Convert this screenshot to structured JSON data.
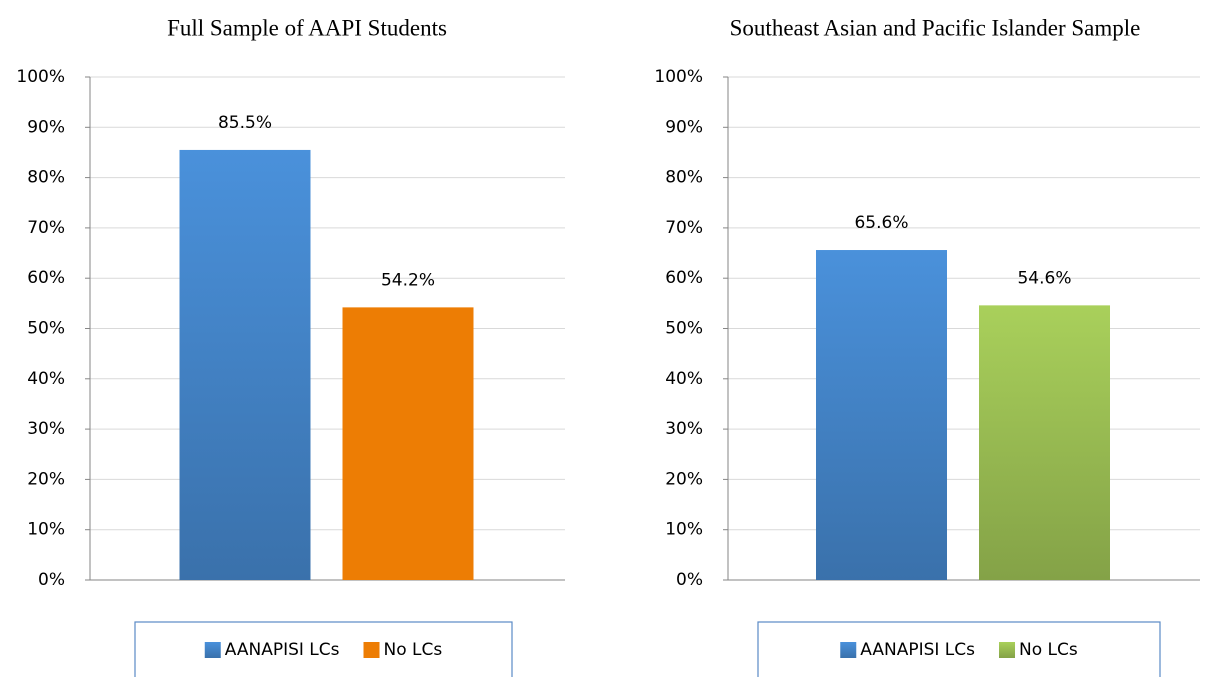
{
  "chart_data": [
    {
      "type": "bar",
      "title": "Full Sample of AAPI Students",
      "categories": [
        null
      ],
      "series": [
        {
          "name": "AANAPISI LCs",
          "color": "#4a91db",
          "gradient": true,
          "values": [
            85.5
          ],
          "value_labels": [
            "85.5%"
          ]
        },
        {
          "name": "No LCs",
          "color": "#ed7d04",
          "gradient": false,
          "values": [
            54.2
          ],
          "value_labels": [
            "54.2%"
          ]
        }
      ],
      "ylim": [
        0,
        100
      ],
      "yticks": [
        {
          "value": 0,
          "label": "0%"
        },
        {
          "value": 10,
          "label": "10%"
        },
        {
          "value": 20,
          "label": "20%"
        },
        {
          "value": 30,
          "label": "30%"
        },
        {
          "value": 40,
          "label": "40%"
        },
        {
          "value": 50,
          "label": "50%"
        },
        {
          "value": 60,
          "label": "60%"
        },
        {
          "value": 70,
          "label": "70%"
        },
        {
          "value": 80,
          "label": "80%"
        },
        {
          "value": 90,
          "label": "90%"
        },
        {
          "value": 100,
          "label": "100%"
        }
      ],
      "grid": true,
      "legend": "bottom"
    },
    {
      "type": "bar",
      "title": "Southeast Asian and Pacific Islander Sample",
      "categories": [
        null
      ],
      "series": [
        {
          "name": "AANAPISI LCs",
          "color": "#4a91db",
          "gradient": true,
          "values": [
            65.6
          ],
          "value_labels": [
            "65.6%"
          ]
        },
        {
          "name": "No LCs",
          "color": "#a9d05b",
          "gradient": true,
          "values": [
            54.6
          ],
          "value_labels": [
            "54.6%"
          ]
        }
      ],
      "ylim": [
        0,
        100
      ],
      "yticks": [
        {
          "value": 0,
          "label": "0%"
        },
        {
          "value": 10,
          "label": "10%"
        },
        {
          "value": 20,
          "label": "20%"
        },
        {
          "value": 30,
          "label": "30%"
        },
        {
          "value": 40,
          "label": "40%"
        },
        {
          "value": 50,
          "label": "50%"
        },
        {
          "value": 60,
          "label": "60%"
        },
        {
          "value": 70,
          "label": "70%"
        },
        {
          "value": 80,
          "label": "80%"
        },
        {
          "value": 90,
          "label": "90%"
        },
        {
          "value": 100,
          "label": "100%"
        }
      ],
      "grid": true,
      "legend": "bottom"
    }
  ]
}
